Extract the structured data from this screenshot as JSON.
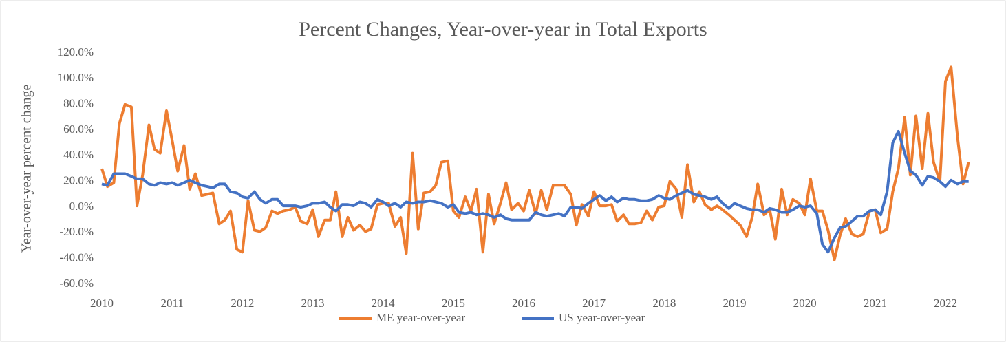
{
  "chart_data": {
    "type": "line",
    "title": "Percent Changes, Year-over-year in Total Exports",
    "y_label": "Year-over-year percent change",
    "legend": "bottom",
    "grid": false,
    "xlim": [
      2010,
      2022.45
    ],
    "xticks": [
      2010,
      2011,
      2012,
      2013,
      2014,
      2015,
      2016,
      2017,
      2018,
      2019,
      2020,
      2021,
      2022
    ],
    "ylim": [
      -60,
      120
    ],
    "yticks": [
      {
        "value": -60,
        "label": "-60.0%"
      },
      {
        "value": -40,
        "label": "-40.0%"
      },
      {
        "value": -20,
        "label": "-20.0%"
      },
      {
        "value": 0,
        "label": "0.0%"
      },
      {
        "value": 20,
        "label": "20.0%"
      },
      {
        "value": 40,
        "label": "40.0%"
      },
      {
        "value": 60,
        "label": "60.0%"
      },
      {
        "value": 80,
        "label": "80.0%"
      },
      {
        "value": 100,
        "label": "100.0%"
      },
      {
        "value": 120,
        "label": "120.0%"
      }
    ],
    "x": [
      2010,
      2010.08,
      2010.17,
      2010.25,
      2010.33,
      2010.42,
      2010.5,
      2010.58,
      2010.67,
      2010.75,
      2010.83,
      2010.92,
      2011,
      2011.08,
      2011.17,
      2011.25,
      2011.33,
      2011.42,
      2011.5,
      2011.58,
      2011.67,
      2011.75,
      2011.83,
      2011.92,
      2012,
      2012.08,
      2012.17,
      2012.25,
      2012.33,
      2012.42,
      2012.5,
      2012.58,
      2012.67,
      2012.75,
      2012.83,
      2012.92,
      2013,
      2013.08,
      2013.17,
      2013.25,
      2013.33,
      2013.42,
      2013.5,
      2013.58,
      2013.67,
      2013.75,
      2013.83,
      2013.92,
      2014,
      2014.08,
      2014.17,
      2014.25,
      2014.33,
      2014.42,
      2014.5,
      2014.58,
      2014.67,
      2014.75,
      2014.83,
      2014.92,
      2015,
      2015.08,
      2015.17,
      2015.25,
      2015.33,
      2015.42,
      2015.5,
      2015.58,
      2015.67,
      2015.75,
      2015.83,
      2015.92,
      2016,
      2016.08,
      2016.17,
      2016.25,
      2016.33,
      2016.42,
      2016.5,
      2016.58,
      2016.67,
      2016.75,
      2016.83,
      2016.92,
      2017,
      2017.08,
      2017.17,
      2017.25,
      2017.33,
      2017.42,
      2017.5,
      2017.58,
      2017.67,
      2017.75,
      2017.83,
      2017.92,
      2018,
      2018.08,
      2018.17,
      2018.25,
      2018.33,
      2018.42,
      2018.5,
      2018.58,
      2018.67,
      2018.75,
      2018.83,
      2018.92,
      2019,
      2019.08,
      2019.17,
      2019.25,
      2019.33,
      2019.42,
      2019.5,
      2019.58,
      2019.67,
      2019.75,
      2019.83,
      2019.92,
      2020,
      2020.08,
      2020.17,
      2020.25,
      2020.33,
      2020.42,
      2020.5,
      2020.58,
      2020.67,
      2020.75,
      2020.83,
      2020.92,
      2021,
      2021.08,
      2021.17,
      2021.25,
      2021.33,
      2021.42,
      2021.5,
      2021.58,
      2021.67,
      2021.75,
      2021.83,
      2021.92,
      2022,
      2022.08,
      2022.17,
      2022.25,
      2022.33
    ],
    "series": [
      {
        "name": "ME year-over-year",
        "color": "#ed7d31",
        "values": [
          30,
          16,
          19,
          65,
          80,
          78,
          1,
          25,
          64,
          45,
          42,
          75,
          52,
          28,
          48,
          14,
          26,
          9,
          10,
          11,
          -13,
          -10,
          -3,
          -33,
          -35,
          5,
          -18,
          -19,
          -16,
          -3,
          -5,
          -3,
          -2,
          0,
          -11,
          -13,
          -2,
          -23,
          -10,
          -10,
          12,
          -23,
          -8,
          -18,
          -14,
          -19,
          -17,
          2,
          3,
          3,
          -15,
          -8,
          -36,
          42,
          -17,
          11,
          12,
          17,
          35,
          36,
          -3,
          -8,
          8,
          -3,
          14,
          -35,
          10,
          -13,
          3,
          19,
          -2,
          3,
          -3,
          13,
          -5,
          13,
          -2,
          17,
          17,
          17,
          10,
          -14,
          2,
          -7,
          12,
          1,
          1,
          2,
          -11,
          -6,
          -13,
          -13,
          -12,
          -3,
          -10,
          0,
          1,
          20,
          14,
          -8,
          33,
          4,
          12,
          2,
          -2,
          1,
          -2,
          -6,
          -10,
          -14,
          -23,
          -8,
          18,
          -6,
          -2,
          -25,
          14,
          -6,
          6,
          3,
          -6,
          22,
          -3,
          -3,
          -18,
          -41,
          -22,
          -9,
          -21,
          -23,
          -21,
          -3,
          -2,
          -20,
          -17,
          12,
          30,
          70,
          25,
          71,
          30,
          73,
          35,
          20,
          98,
          109,
          55,
          18,
          35
        ]
      },
      {
        "name": "US year-over-year",
        "color": "#4472c4",
        "values": [
          18,
          17,
          26,
          26,
          26,
          24,
          22,
          22,
          18,
          17,
          19,
          18,
          19,
          17,
          19,
          21,
          19,
          17,
          16,
          15,
          18,
          18,
          12,
          11,
          8,
          7,
          12,
          6,
          3,
          6,
          6,
          1,
          1,
          1,
          0,
          1,
          3,
          3,
          4,
          0,
          -3,
          2,
          2,
          1,
          4,
          3,
          0,
          6,
          4,
          1,
          3,
          0,
          4,
          3,
          4,
          4,
          5,
          4,
          3,
          0,
          2,
          -4,
          -5,
          -4,
          -6,
          -5,
          -6,
          -8,
          -6,
          -9,
          -10,
          -10,
          -10,
          -10,
          -4,
          -6,
          -7,
          -6,
          -5,
          -7,
          0,
          0,
          -1,
          3,
          6,
          9,
          5,
          8,
          4,
          7,
          6,
          6,
          5,
          5,
          6,
          9,
          7,
          6,
          9,
          11,
          13,
          10,
          9,
          8,
          6,
          8,
          3,
          -1,
          3,
          1,
          -1,
          -2,
          -2,
          -4,
          -1,
          -2,
          -4,
          -4,
          -2,
          1,
          0,
          1,
          -5,
          -29,
          -35,
          -24,
          -16,
          -15,
          -11,
          -7,
          -7,
          -3,
          -2,
          -6,
          12,
          50,
          59,
          42,
          28,
          25,
          17,
          24,
          23,
          20,
          16,
          21,
          18,
          20,
          20
        ]
      }
    ]
  }
}
